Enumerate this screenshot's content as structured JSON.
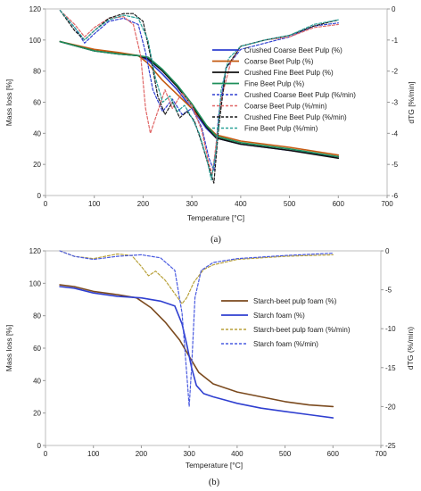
{
  "chart_data": [
    {
      "type": "line",
      "panel_label": "(a)",
      "xlabel": "Temperature [°C]",
      "ylabel": "Mass loss [%]",
      "y2label": "dTG [%/min]",
      "xlim": [
        0,
        700
      ],
      "ylim": [
        0,
        120
      ],
      "y2lim": [
        -6,
        0
      ],
      "xticks": [
        0,
        100,
        200,
        300,
        400,
        500,
        600,
        700
      ],
      "yticks": [
        0,
        20,
        40,
        60,
        80,
        100,
        120
      ],
      "y2ticks": [
        -6,
        -5,
        -4,
        -3,
        -2,
        -1,
        0
      ],
      "grid": false,
      "legend_position": "right",
      "series": [
        {
          "name": "Crushed Coarse Beet Pulp (%)",
          "axis": "left",
          "color": "#2f3fd0",
          "dash": "solid",
          "x": [
            30,
            100,
            150,
            190,
            210,
            240,
            270,
            300,
            330,
            350,
            400,
            500,
            600
          ],
          "y": [
            99,
            93,
            91,
            90,
            87,
            78,
            68,
            56,
            43,
            37,
            33,
            29,
            25
          ]
        },
        {
          "name": "Coarse Beet Pulp (%)",
          "axis": "left",
          "color": "#c55a11",
          "dash": "solid",
          "x": [
            30,
            100,
            150,
            190,
            210,
            240,
            270,
            300,
            330,
            350,
            400,
            500,
            600
          ],
          "y": [
            99,
            94,
            92,
            90,
            85,
            74,
            65,
            56,
            45,
            39,
            35,
            31,
            26
          ]
        },
        {
          "name": "Crushed Fine Beet Pulp (%)",
          "axis": "left",
          "color": "#111111",
          "dash": "solid",
          "x": [
            30,
            100,
            150,
            190,
            210,
            240,
            270,
            300,
            330,
            350,
            400,
            500,
            600
          ],
          "y": [
            99,
            93,
            91,
            90,
            88,
            80,
            70,
            58,
            44,
            37,
            33,
            29,
            24
          ]
        },
        {
          "name": "Fine Beet Pulp (%)",
          "axis": "left",
          "color": "#1e8f5a",
          "dash": "solid",
          "x": [
            30,
            100,
            150,
            190,
            210,
            240,
            270,
            300,
            330,
            350,
            400,
            500,
            600
          ],
          "y": [
            99,
            93,
            91,
            90,
            89,
            81,
            71,
            59,
            45,
            38,
            34,
            30,
            25
          ]
        },
        {
          "name": "Crushed Coarse Beet Pulp (%/min)",
          "axis": "right",
          "color": "#2f3fd0",
          "dash": "dash",
          "x": [
            30,
            60,
            80,
            100,
            130,
            160,
            190,
            205,
            220,
            240,
            260,
            280,
            300,
            320,
            335,
            345,
            355,
            370,
            400,
            450,
            500,
            550,
            600
          ],
          "y": [
            -0.05,
            -0.6,
            -1.1,
            -0.8,
            -0.4,
            -0.3,
            -0.5,
            -1.4,
            -2.6,
            -3.3,
            -2.9,
            -3.4,
            -3.2,
            -3.8,
            -4.8,
            -5.2,
            -3.4,
            -1.9,
            -1.3,
            -1.1,
            -0.9,
            -0.55,
            -0.45
          ]
        },
        {
          "name": "Coarse Beet Pulp (%/min)",
          "axis": "right",
          "color": "#e06666",
          "dash": "dash",
          "x": [
            30,
            60,
            80,
            100,
            130,
            160,
            180,
            195,
            205,
            215,
            230,
            245,
            260,
            280,
            300,
            320,
            335,
            342,
            350,
            360,
            380,
            400,
            450,
            500,
            550,
            600
          ],
          "y": [
            -0.05,
            -0.5,
            -0.9,
            -0.6,
            -0.3,
            -0.25,
            -0.5,
            -1.5,
            -3.2,
            -4.0,
            -3.3,
            -2.6,
            -3.2,
            -2.7,
            -3.1,
            -3.9,
            -5.0,
            -5.3,
            -4.3,
            -2.9,
            -1.7,
            -1.2,
            -1.0,
            -0.9,
            -0.6,
            -0.5
          ]
        },
        {
          "name": "Crushed Fine Beet Pulp (%/min)",
          "axis": "right",
          "color": "#1a1a1a",
          "dash": "dash",
          "x": [
            30,
            60,
            80,
            100,
            130,
            160,
            180,
            200,
            215,
            230,
            245,
            260,
            275,
            290,
            305,
            320,
            335,
            345,
            355,
            370,
            400,
            450,
            500,
            550,
            600
          ],
          "y": [
            -0.05,
            -0.7,
            -1.0,
            -0.7,
            -0.3,
            -0.15,
            -0.15,
            -0.4,
            -1.5,
            -2.8,
            -3.4,
            -3.0,
            -3.5,
            -3.3,
            -3.6,
            -4.3,
            -5.1,
            -5.6,
            -3.8,
            -1.9,
            -1.2,
            -1.0,
            -0.85,
            -0.55,
            -0.35
          ]
        },
        {
          "name": "Fine Beet Pulp (%/min)",
          "axis": "right",
          "color": "#2aa198",
          "dash": "dash",
          "x": [
            30,
            60,
            80,
            100,
            130,
            160,
            190,
            210,
            225,
            240,
            255,
            270,
            285,
            300,
            315,
            330,
            340,
            350,
            360,
            375,
            400,
            450,
            500,
            550,
            600
          ],
          "y": [
            -0.05,
            -0.6,
            -1.0,
            -0.7,
            -0.35,
            -0.2,
            -0.3,
            -1.0,
            -2.2,
            -3.0,
            -2.8,
            -3.3,
            -3.1,
            -3.5,
            -4.0,
            -4.8,
            -5.5,
            -4.5,
            -2.6,
            -1.6,
            -1.2,
            -1.0,
            -0.85,
            -0.5,
            -0.35
          ]
        }
      ]
    },
    {
      "type": "line",
      "panel_label": "(b)",
      "xlabel": "Temperature [°C]",
      "ylabel": "Mass loss [%]",
      "y2label": "dTG (%/min)",
      "xlim": [
        0,
        700
      ],
      "ylim": [
        0,
        120
      ],
      "y2lim": [
        -25,
        0
      ],
      "xticks": [
        0,
        100,
        200,
        300,
        400,
        500,
        600,
        700
      ],
      "yticks": [
        0,
        20,
        40,
        60,
        80,
        100,
        120
      ],
      "y2ticks": [
        -25,
        -20,
        -15,
        -10,
        -5,
        0
      ],
      "grid": false,
      "legend_position": "right",
      "series": [
        {
          "name": "Starch-beet pulp foam (%)",
          "axis": "left",
          "color": "#7b4a1e",
          "dash": "solid",
          "x": [
            30,
            60,
            100,
            150,
            190,
            220,
            250,
            280,
            300,
            320,
            350,
            400,
            450,
            500,
            550,
            600
          ],
          "y": [
            99,
            98,
            95,
            93,
            91,
            85,
            76,
            65,
            55,
            45,
            38,
            33,
            30,
            27,
            25,
            24
          ]
        },
        {
          "name": "Starch foam (%)",
          "axis": "left",
          "color": "#2f3fd0",
          "dash": "solid",
          "x": [
            30,
            60,
            100,
            150,
            200,
            240,
            270,
            285,
            295,
            305,
            315,
            330,
            350,
            400,
            450,
            500,
            550,
            600
          ],
          "y": [
            98,
            97,
            94,
            92,
            91,
            89,
            86,
            75,
            62,
            48,
            37,
            32,
            30,
            26,
            23,
            21,
            19,
            17
          ]
        },
        {
          "name": "Starch-beet pulp foam  (%/min)",
          "axis": "right",
          "color": "#b8a13a",
          "dash": "dash",
          "x": [
            30,
            60,
            100,
            150,
            180,
            200,
            215,
            230,
            250,
            270,
            285,
            295,
            310,
            330,
            350,
            400,
            500,
            600
          ],
          "y": [
            0,
            -0.7,
            -1.0,
            -0.4,
            -0.6,
            -2.0,
            -3.2,
            -2.6,
            -3.8,
            -5.5,
            -6.8,
            -6.0,
            -4.0,
            -2.4,
            -1.8,
            -1.1,
            -0.7,
            -0.5
          ]
        },
        {
          "name": "Starch foam (%/min)",
          "axis": "right",
          "color": "#4a5be0",
          "dash": "dash",
          "x": [
            30,
            60,
            100,
            150,
            200,
            240,
            270,
            285,
            295,
            300,
            305,
            312,
            325,
            350,
            400,
            500,
            600
          ],
          "y": [
            0,
            -0.7,
            -1.1,
            -0.7,
            -0.5,
            -0.9,
            -2.5,
            -8.0,
            -16.0,
            -20.0,
            -15.0,
            -6.0,
            -2.5,
            -1.5,
            -1.0,
            -0.6,
            -0.3
          ]
        }
      ]
    }
  ]
}
